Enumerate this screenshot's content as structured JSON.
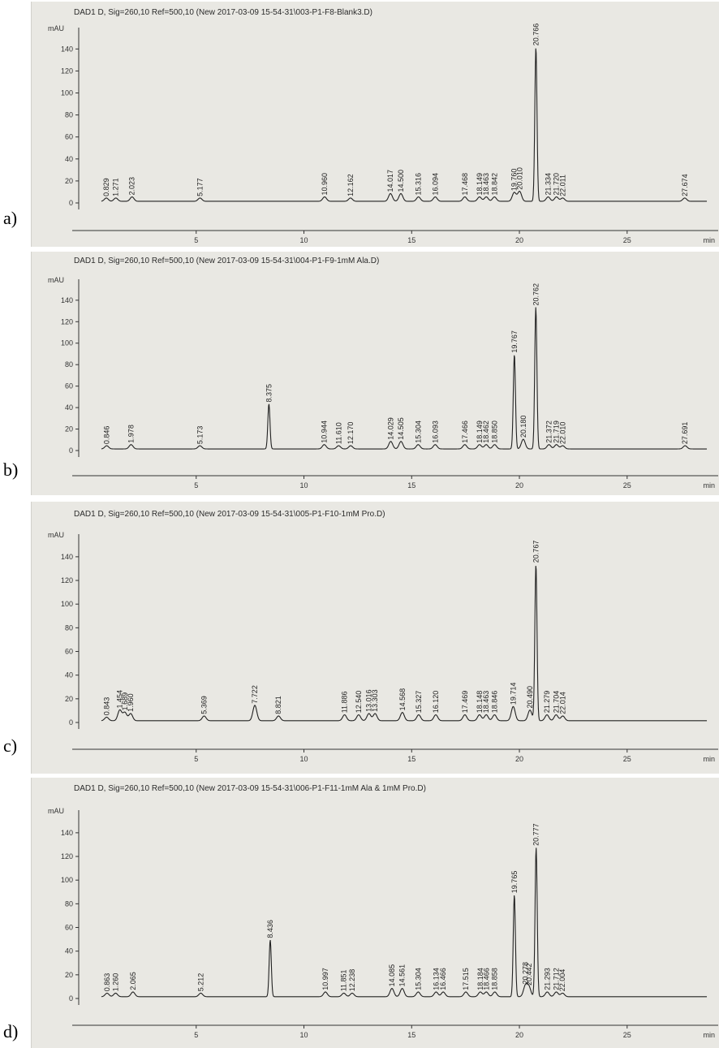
{
  "chart_data": [
    {
      "type": "line",
      "panel_label": "a)",
      "title": "DAD1 D, Sig=260,10 Ref=500,10 (New 2017-03-09 15-54-31\\003-P1-F8-Blank3.D)",
      "ylabel": "mAU",
      "xlabel": "min",
      "xlim": [
        0,
        29
      ],
      "ylim": [
        -8,
        155
      ],
      "x_ticks": [
        5,
        10,
        15,
        20,
        25
      ],
      "y_ticks": [
        0,
        20,
        40,
        60,
        80,
        100,
        120,
        140
      ],
      "peaks": [
        {
          "rt": 0.829,
          "height": 3
        },
        {
          "rt": 1.271,
          "height": 3
        },
        {
          "rt": 2.023,
          "height": 4
        },
        {
          "rt": 5.177,
          "height": 3
        },
        {
          "rt": 10.96,
          "height": 4
        },
        {
          "rt": 12.162,
          "height": 3
        },
        {
          "rt": 14.017,
          "height": 7
        },
        {
          "rt": 14.5,
          "height": 7
        },
        {
          "rt": 15.316,
          "height": 4
        },
        {
          "rt": 16.094,
          "height": 4
        },
        {
          "rt": 17.468,
          "height": 4
        },
        {
          "rt": 18.149,
          "height": 4
        },
        {
          "rt": 18.463,
          "height": 4
        },
        {
          "rt": 18.842,
          "height": 4
        },
        {
          "rt": 19.76,
          "height": 8
        },
        {
          "rt": 20.01,
          "height": 9
        },
        {
          "rt": 20.766,
          "height": 140
        },
        {
          "rt": 21.334,
          "height": 4
        },
        {
          "rt": 21.72,
          "height": 4
        },
        {
          "rt": 22.011,
          "height": 3
        },
        {
          "rt": 27.674,
          "height": 3
        }
      ]
    },
    {
      "type": "line",
      "panel_label": "b)",
      "title": "DAD1 D, Sig=260,10 Ref=500,10 (New 2017-03-09 15-54-31\\004-P1-F9-1mM Ala.D)",
      "ylabel": "mAU",
      "xlabel": "min",
      "xlim": [
        0,
        29
      ],
      "ylim": [
        -8,
        155
      ],
      "x_ticks": [
        5,
        10,
        15,
        20,
        25
      ],
      "y_ticks": [
        0,
        20,
        40,
        60,
        80,
        100,
        120,
        140
      ],
      "peaks": [
        {
          "rt": 0.846,
          "height": 3
        },
        {
          "rt": 1.978,
          "height": 4
        },
        {
          "rt": 5.173,
          "height": 3
        },
        {
          "rt": 8.375,
          "height": 42
        },
        {
          "rt": 10.944,
          "height": 4
        },
        {
          "rt": 11.61,
          "height": 3
        },
        {
          "rt": 12.17,
          "height": 3
        },
        {
          "rt": 14.029,
          "height": 7
        },
        {
          "rt": 14.505,
          "height": 7
        },
        {
          "rt": 15.304,
          "height": 4
        },
        {
          "rt": 16.093,
          "height": 4
        },
        {
          "rt": 17.466,
          "height": 4
        },
        {
          "rt": 18.149,
          "height": 4
        },
        {
          "rt": 18.462,
          "height": 4
        },
        {
          "rt": 18.85,
          "height": 4
        },
        {
          "rt": 19.767,
          "height": 88
        },
        {
          "rt": 20.18,
          "height": 9
        },
        {
          "rt": 20.762,
          "height": 132
        },
        {
          "rt": 21.372,
          "height": 4
        },
        {
          "rt": 21.719,
          "height": 4
        },
        {
          "rt": 22.01,
          "height": 3
        },
        {
          "rt": 27.691,
          "height": 3
        }
      ]
    },
    {
      "type": "line",
      "panel_label": "c)",
      "title": "DAD1 D, Sig=260,10 Ref=500,10 (New 2017-03-09 15-54-31\\005-P1-F10-1mM Pro.D)",
      "ylabel": "mAU",
      "xlabel": "min",
      "xlim": [
        0,
        29
      ],
      "ylim": [
        -8,
        155
      ],
      "x_ticks": [
        5,
        10,
        15,
        20,
        25
      ],
      "y_ticks": [
        0,
        20,
        40,
        60,
        80,
        100,
        120,
        140
      ],
      "peaks": [
        {
          "rt": 0.843,
          "height": 3
        },
        {
          "rt": 1.454,
          "height": 9
        },
        {
          "rt": 1.689,
          "height": 7
        },
        {
          "rt": 1.96,
          "height": 6
        },
        {
          "rt": 5.369,
          "height": 4
        },
        {
          "rt": 7.722,
          "height": 13
        },
        {
          "rt": 8.821,
          "height": 4
        },
        {
          "rt": 11.886,
          "height": 5
        },
        {
          "rt": 12.54,
          "height": 5
        },
        {
          "rt": 13.016,
          "height": 6
        },
        {
          "rt": 13.303,
          "height": 6
        },
        {
          "rt": 14.568,
          "height": 7
        },
        {
          "rt": 15.327,
          "height": 5
        },
        {
          "rt": 16.12,
          "height": 5
        },
        {
          "rt": 17.469,
          "height": 5
        },
        {
          "rt": 18.148,
          "height": 5
        },
        {
          "rt": 18.463,
          "height": 5
        },
        {
          "rt": 18.846,
          "height": 5
        },
        {
          "rt": 19.714,
          "height": 12
        },
        {
          "rt": 20.49,
          "height": 9
        },
        {
          "rt": 20.767,
          "height": 132
        },
        {
          "rt": 21.279,
          "height": 5
        },
        {
          "rt": 21.704,
          "height": 5
        },
        {
          "rt": 22.014,
          "height": 4
        }
      ]
    },
    {
      "type": "line",
      "panel_label": "d)",
      "title": "DAD1 D, Sig=260,10 Ref=500,10 (New 2017-03-09 15-54-31\\006-P1-F11-1mM Ala & 1mM Pro.D)",
      "ylabel": "mAU",
      "xlabel": "min",
      "xlim": [
        0,
        29
      ],
      "ylim": [
        -8,
        155
      ],
      "x_ticks": [
        5,
        10,
        15,
        20,
        25
      ],
      "y_ticks": [
        0,
        20,
        40,
        60,
        80,
        100,
        120,
        140
      ],
      "peaks": [
        {
          "rt": 0.863,
          "height": 3
        },
        {
          "rt": 1.26,
          "height": 3
        },
        {
          "rt": 2.065,
          "height": 4
        },
        {
          "rt": 5.212,
          "height": 3
        },
        {
          "rt": 8.436,
          "height": 48
        },
        {
          "rt": 10.997,
          "height": 4
        },
        {
          "rt": 11.851,
          "height": 3
        },
        {
          "rt": 12.238,
          "height": 3
        },
        {
          "rt": 14.085,
          "height": 7
        },
        {
          "rt": 14.561,
          "height": 7
        },
        {
          "rt": 15.304,
          "height": 4
        },
        {
          "rt": 16.134,
          "height": 4
        },
        {
          "rt": 16.466,
          "height": 4
        },
        {
          "rt": 17.515,
          "height": 4
        },
        {
          "rt": 18.184,
          "height": 4
        },
        {
          "rt": 18.466,
          "height": 4
        },
        {
          "rt": 18.858,
          "height": 4
        },
        {
          "rt": 19.765,
          "height": 86
        },
        {
          "rt": 20.278,
          "height": 9
        },
        {
          "rt": 20.442,
          "height": 8
        },
        {
          "rt": 20.777,
          "height": 126
        },
        {
          "rt": 21.293,
          "height": 4
        },
        {
          "rt": 21.712,
          "height": 4
        },
        {
          "rt": 22.004,
          "height": 3
        }
      ]
    }
  ]
}
